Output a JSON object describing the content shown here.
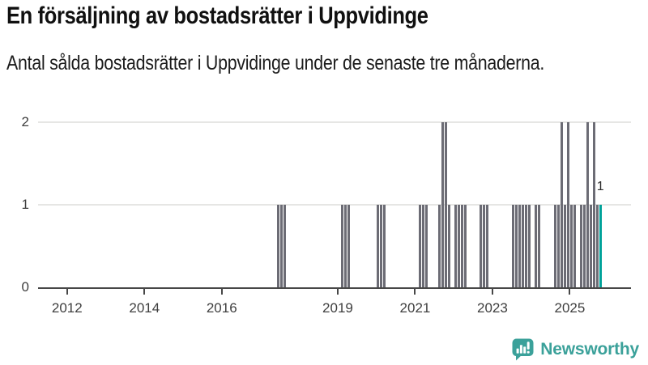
{
  "header": {
    "title": "En försäljning av bostadsrätter i Uppvidinge",
    "subtitle": "Antal sålda bostadsrätter i Uppvidinge under de senaste tre månaderna."
  },
  "chart_data": {
    "type": "bar",
    "title": "En försäljning av bostadsrätter i Uppvidinge",
    "subtitle": "Antal sålda bostadsrätter i Uppvidinge under de senaste tre månaderna.",
    "x_unit": "month",
    "x_domain": [
      "2011-04",
      "2026-08"
    ],
    "x_tick_years": [
      2012,
      2014,
      2016,
      2019,
      2021,
      2023,
      2025
    ],
    "ylim": [
      0,
      2
    ],
    "y_ticks": [
      0,
      1,
      2
    ],
    "grid": "horizontal",
    "legend": "none",
    "monthly_values": [
      {
        "month": "2017-06",
        "value": 1
      },
      {
        "month": "2017-07",
        "value": 1
      },
      {
        "month": "2017-08",
        "value": 1
      },
      {
        "month": "2019-02",
        "value": 1
      },
      {
        "month": "2019-03",
        "value": 1
      },
      {
        "month": "2019-04",
        "value": 1
      },
      {
        "month": "2020-01",
        "value": 1
      },
      {
        "month": "2020-02",
        "value": 1
      },
      {
        "month": "2020-03",
        "value": 1
      },
      {
        "month": "2021-02",
        "value": 1
      },
      {
        "month": "2021-03",
        "value": 1
      },
      {
        "month": "2021-04",
        "value": 1
      },
      {
        "month": "2021-08",
        "value": 1
      },
      {
        "month": "2021-09",
        "value": 2
      },
      {
        "month": "2021-10",
        "value": 2
      },
      {
        "month": "2021-11",
        "value": 1
      },
      {
        "month": "2022-01",
        "value": 1
      },
      {
        "month": "2022-02",
        "value": 1
      },
      {
        "month": "2022-03",
        "value": 1
      },
      {
        "month": "2022-04",
        "value": 1
      },
      {
        "month": "2022-09",
        "value": 1
      },
      {
        "month": "2022-10",
        "value": 1
      },
      {
        "month": "2022-11",
        "value": 1
      },
      {
        "month": "2023-07",
        "value": 1
      },
      {
        "month": "2023-08",
        "value": 1
      },
      {
        "month": "2023-09",
        "value": 1
      },
      {
        "month": "2023-10",
        "value": 1
      },
      {
        "month": "2023-11",
        "value": 1
      },
      {
        "month": "2023-12",
        "value": 1
      },
      {
        "month": "2024-02",
        "value": 1
      },
      {
        "month": "2024-03",
        "value": 1
      },
      {
        "month": "2024-08",
        "value": 1
      },
      {
        "month": "2024-09",
        "value": 1
      },
      {
        "month": "2024-10",
        "value": 2
      },
      {
        "month": "2024-11",
        "value": 1
      },
      {
        "month": "2024-12",
        "value": 2
      },
      {
        "month": "2025-01",
        "value": 1
      },
      {
        "month": "2025-02",
        "value": 1
      },
      {
        "month": "2025-04",
        "value": 1
      },
      {
        "month": "2025-05",
        "value": 1
      },
      {
        "month": "2025-06",
        "value": 2
      },
      {
        "month": "2025-07",
        "value": 1
      },
      {
        "month": "2025-08",
        "value": 2
      },
      {
        "month": "2025-09",
        "value": 1
      },
      {
        "month": "2025-10",
        "value": 1
      }
    ],
    "highlight": {
      "month": "2025-10",
      "value": 1,
      "label": "1"
    },
    "colors": {
      "bar": "#6C6C75",
      "highlight": "#00A29A",
      "gridline": "#E6E6E4",
      "axis": "#474747"
    }
  },
  "branding": {
    "name": "Newsworthy",
    "icon": "speech-bubble-bar-chart-icon",
    "color": "#3BA19A"
  }
}
